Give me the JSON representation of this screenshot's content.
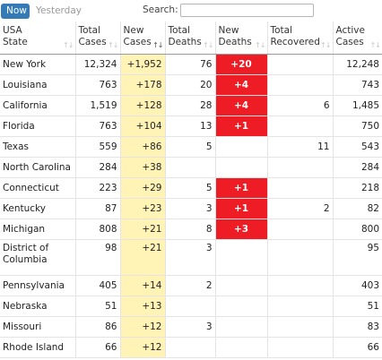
{
  "tabs": [
    {
      "label": "Now",
      "active": true
    },
    {
      "label": "Yesterday",
      "active": false
    }
  ],
  "search": {
    "label": "Search:",
    "value": "",
    "placeholder": ""
  },
  "columns": [
    {
      "line1": "USA",
      "line2": "State"
    },
    {
      "line1": "Total",
      "line2": "Cases"
    },
    {
      "line1": "New",
      "line2": "Cases"
    },
    {
      "line1": "Total",
      "line2": "Deaths"
    },
    {
      "line1": "New",
      "line2": "Deaths"
    },
    {
      "line1": "Total",
      "line2": "Recovered"
    },
    {
      "line1": "Active",
      "line2": "Cases"
    }
  ],
  "rows": [
    {
      "state": "New York",
      "total_cases": "12,324",
      "new_cases": "+1,952",
      "total_deaths": "76",
      "new_deaths": "+20",
      "total_recovered": "",
      "active_cases": "12,248"
    },
    {
      "state": "Louisiana",
      "total_cases": "763",
      "new_cases": "+178",
      "total_deaths": "20",
      "new_deaths": "+4",
      "total_recovered": "",
      "active_cases": "743"
    },
    {
      "state": "California",
      "total_cases": "1,519",
      "new_cases": "+128",
      "total_deaths": "28",
      "new_deaths": "+4",
      "total_recovered": "6",
      "active_cases": "1,485"
    },
    {
      "state": "Florida",
      "total_cases": "763",
      "new_cases": "+104",
      "total_deaths": "13",
      "new_deaths": "+1",
      "total_recovered": "",
      "active_cases": "750"
    },
    {
      "state": "Texas",
      "total_cases": "559",
      "new_cases": "+86",
      "total_deaths": "5",
      "new_deaths": "",
      "total_recovered": "11",
      "active_cases": "543"
    },
    {
      "state": "North Carolina",
      "total_cases": "284",
      "new_cases": "+38",
      "total_deaths": "",
      "new_deaths": "",
      "total_recovered": "",
      "active_cases": "284"
    },
    {
      "state": "Connecticut",
      "total_cases": "223",
      "new_cases": "+29",
      "total_deaths": "5",
      "new_deaths": "+1",
      "total_recovered": "",
      "active_cases": "218"
    },
    {
      "state": "Kentucky",
      "total_cases": "87",
      "new_cases": "+23",
      "total_deaths": "3",
      "new_deaths": "+1",
      "total_recovered": "2",
      "active_cases": "82"
    },
    {
      "state": "Michigan",
      "total_cases": "808",
      "new_cases": "+21",
      "total_deaths": "8",
      "new_deaths": "+3",
      "total_recovered": "",
      "active_cases": "800"
    },
    {
      "state": "District of Columbia",
      "total_cases": "98",
      "new_cases": "+21",
      "total_deaths": "3",
      "new_deaths": "",
      "total_recovered": "",
      "active_cases": "95"
    },
    {
      "state": "Pennsylvania",
      "total_cases": "405",
      "new_cases": "+14",
      "total_deaths": "2",
      "new_deaths": "",
      "total_recovered": "",
      "active_cases": "403"
    },
    {
      "state": "Nebraska",
      "total_cases": "51",
      "new_cases": "+13",
      "total_deaths": "",
      "new_deaths": "",
      "total_recovered": "",
      "active_cases": "51"
    },
    {
      "state": "Missouri",
      "total_cases": "86",
      "new_cases": "+12",
      "total_deaths": "3",
      "new_deaths": "",
      "total_recovered": "",
      "active_cases": "83"
    },
    {
      "state": "Rhode Island",
      "total_cases": "66",
      "new_cases": "+12",
      "total_deaths": "",
      "new_deaths": "",
      "total_recovered": "",
      "active_cases": "66"
    }
  ],
  "colors": {
    "tab_active_bg": "#337ab7",
    "new_cases_bg": "#fff4b6",
    "new_deaths_bg": "#ee1c25"
  },
  "sorted_column": 2,
  "sort_icon": "sort-arrows-icon"
}
